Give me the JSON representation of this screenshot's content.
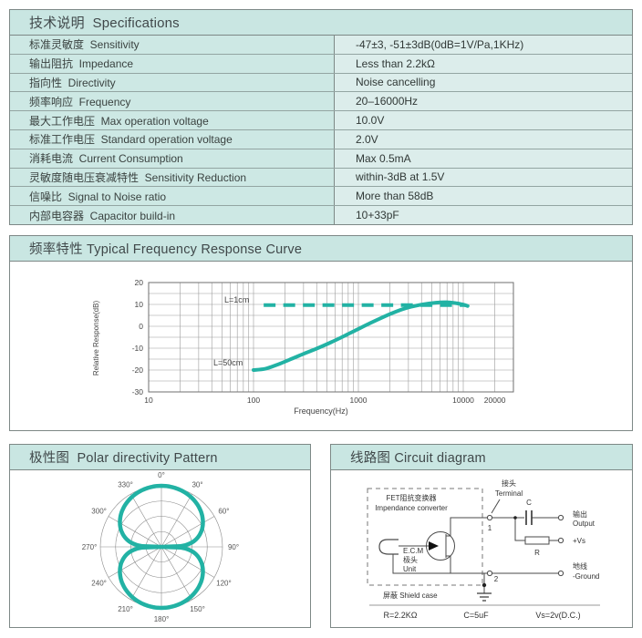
{
  "page": {
    "accent_color": "#22b2a4",
    "header_bg_color": "#c9e6e2",
    "table_label_bg": "#cde8e4",
    "table_value_bg": "#dcedeb",
    "border_color": "#7d8886"
  },
  "specs": {
    "title": "技术说明  Specifications",
    "rows": [
      {
        "label_zh": "标准灵敏度",
        "label_en": "Sensitivity",
        "value": "-47±3, -51±3dB(0dB=1V/Pa,1KHz)"
      },
      {
        "label_zh": "输出阻抗",
        "label_en": "Impedance",
        "value": "Less than 2.2kΩ"
      },
      {
        "label_zh": "指向性",
        "label_en": "Directivity",
        "value": "Noise cancelling"
      },
      {
        "label_zh": "频率响应",
        "label_en": "Frequency",
        "value": "20–16000Hz"
      },
      {
        "label_zh": "最大工作电压",
        "label_en": "Max operation voltage",
        "value": "10.0V"
      },
      {
        "label_zh": "标准工作电压",
        "label_en": "Standard operation voltage",
        "value": "2.0V"
      },
      {
        "label_zh": "消耗电流",
        "label_en": "Current Consumption",
        "value": "Max 0.5mA"
      },
      {
        "label_zh": "灵敏度随电压衰减特性",
        "label_en": "Sensitivity Reduction",
        "value": "within-3dB at 1.5V"
      },
      {
        "label_zh": "信噪比",
        "label_en": "Signal to Noise ratio",
        "value": "More than 58dB"
      },
      {
        "label_zh": "内部电容器",
        "label_en": "Capacitor build-in",
        "value": "10+33pF"
      }
    ]
  },
  "freq_section": {
    "title": "频率特性 Typical Frequency Response Curve"
  },
  "polar_section": {
    "title": "极性图  Polar directivity Pattern"
  },
  "circuit_section": {
    "title": "线路图 Circuit diagram",
    "labels": {
      "converter_zh": "FET阻抗变换器",
      "converter_en": "Impendance converter",
      "ecm_line1": "E.C.M",
      "ecm_line2": "极头",
      "ecm_line3": "Unit",
      "terminal_zh": "接头",
      "terminal_en": "Terminal",
      "pin1": "1",
      "pin2": "2",
      "cap": "C",
      "res": "R",
      "out_zh": "输出",
      "out_en": "Output",
      "vs": "+Vs",
      "gnd_zh": "地线",
      "gnd_en": "-Ground",
      "shield": "屏蔽  Shield case",
      "r_value": "R=2.2KΩ",
      "c_value": "C=5uF",
      "vs_value": "Vs=2v(D.C.)"
    }
  },
  "chart_data": [
    {
      "type": "line",
      "title": "频率特性 Typical Frequency Response Curve",
      "xlabel": "Frequency(Hz)",
      "ylabel": "Relative Response(dB)",
      "x_scale": "log",
      "xlim": [
        10,
        30000
      ],
      "ylim": [
        -30,
        20
      ],
      "x_ticks": [
        10,
        100,
        1000,
        10000,
        20000
      ],
      "y_ticks": [
        20,
        10,
        0,
        -10,
        -20,
        -30
      ],
      "grid": true,
      "grid_minor_x": true,
      "grid_y_step": 5,
      "legend_position": "inline-labels",
      "series": [
        {
          "name": "L=1cm",
          "style": "dashed",
          "y_const": 9.7,
          "x_range": [
            125,
            10500
          ]
        },
        {
          "name": "L=50cm",
          "style": "solid",
          "points": [
            [
              100,
              -20
            ],
            [
              130,
              -19.4
            ],
            [
              170,
              -17.5
            ],
            [
              220,
              -15.3
            ],
            [
              300,
              -12.6
            ],
            [
              400,
              -10.2
            ],
            [
              550,
              -7.3
            ],
            [
              750,
              -4.2
            ],
            [
              1000,
              -1.2
            ],
            [
              1400,
              2.2
            ],
            [
              2000,
              5.6
            ],
            [
              2800,
              8.2
            ],
            [
              4000,
              9.9
            ],
            [
              5500,
              10.8
            ],
            [
              7000,
              11.0
            ],
            [
              8500,
              10.6
            ],
            [
              10000,
              9.9
            ],
            [
              11000,
              9.3
            ]
          ]
        }
      ]
    },
    {
      "type": "polar",
      "title": "极性图 Polar directivity Pattern",
      "angle_labels": [
        "0°",
        "30°",
        "60°",
        "90°",
        "120°",
        "150°",
        "180°",
        "210°",
        "240°",
        "270°",
        "300°",
        "330°"
      ],
      "angle_step_deg": 30,
      "rings": [
        0.25,
        0.5,
        0.75,
        1.0
      ],
      "pattern": "bidirectional figure-8 (noise cancelling)",
      "lobe_exponent": 0.35,
      "lobe_peaks_deg": [
        0,
        180
      ]
    }
  ]
}
